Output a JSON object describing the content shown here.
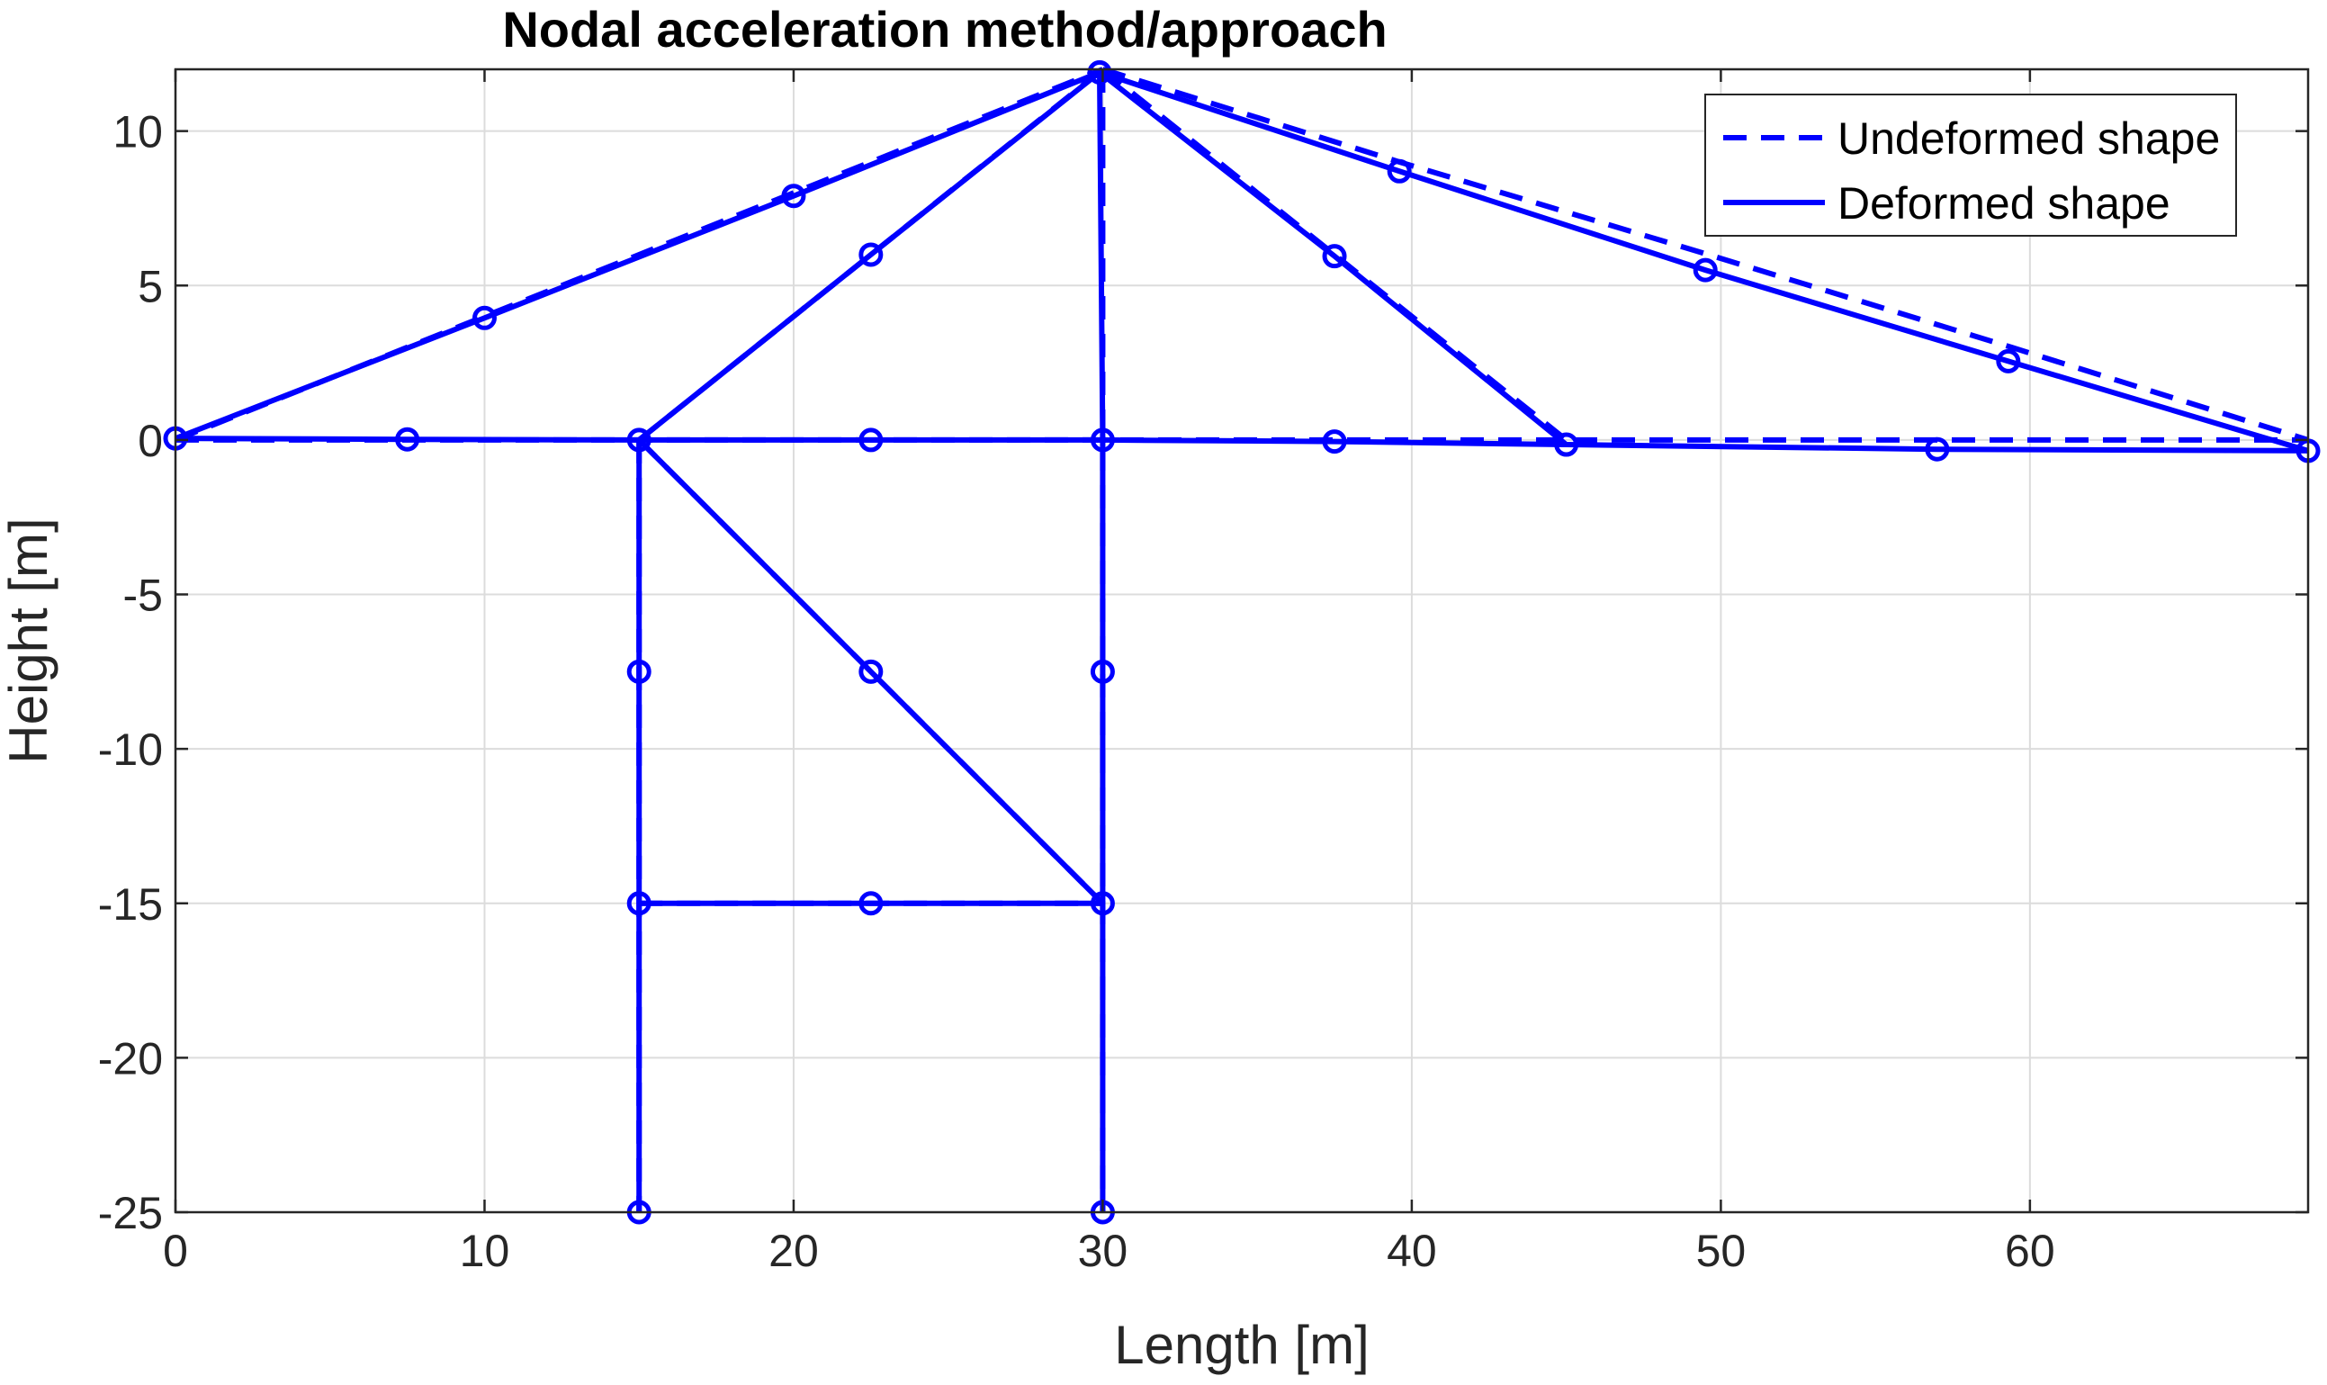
{
  "chart_data": {
    "type": "line",
    "title": "Nodal acceleration method/approach",
    "xlabel": "Length [m]",
    "ylabel": "Height [m]",
    "xlim": [
      0,
      69
    ],
    "ylim": [
      -25,
      12
    ],
    "xticks": [
      0,
      10,
      20,
      30,
      40,
      50,
      60
    ],
    "yticks": [
      -25,
      -20,
      -15,
      -10,
      -5,
      0,
      5,
      10
    ],
    "grid": true,
    "legend_position": "top-right",
    "color": "#0000ff",
    "series": [
      {
        "name": "Undeformed shape",
        "style": "dashed",
        "segments": [
          [
            [
              0,
              0
            ],
            [
              7.5,
              0
            ],
            [
              15,
              0
            ],
            [
              22.5,
              0
            ],
            [
              30,
              0
            ],
            [
              37.5,
              0
            ],
            [
              45,
              0
            ],
            [
              57,
              0
            ],
            [
              69,
              0
            ]
          ],
          [
            [
              0,
              0
            ],
            [
              10,
              4
            ],
            [
              20,
              8
            ],
            [
              30,
              12
            ]
          ],
          [
            [
              15,
              0
            ],
            [
              22.5,
              6
            ],
            [
              30,
              12
            ]
          ],
          [
            [
              30,
              12
            ],
            [
              30,
              0
            ],
            [
              30,
              -7.5
            ],
            [
              30,
              -15
            ],
            [
              30,
              -25
            ]
          ],
          [
            [
              30,
              12
            ],
            [
              37.5,
              6
            ],
            [
              45,
              0
            ]
          ],
          [
            [
              30,
              12
            ],
            [
              39.6,
              9
            ],
            [
              49.6,
              6
            ],
            [
              59.4,
              3
            ],
            [
              69,
              0
            ]
          ],
          [
            [
              15,
              0
            ],
            [
              15,
              -7.5
            ],
            [
              15,
              -15
            ],
            [
              15,
              -25
            ]
          ],
          [
            [
              15,
              0
            ],
            [
              22.5,
              -7.5
            ],
            [
              30,
              -15
            ]
          ],
          [
            [
              15,
              -15
            ],
            [
              22.5,
              -15
            ],
            [
              30,
              -15
            ]
          ]
        ]
      },
      {
        "name": "Deformed shape",
        "style": "solid",
        "marker": "circle",
        "segments": [
          [
            [
              0,
              0.05
            ],
            [
              7.5,
              0.02
            ],
            [
              15,
              0
            ],
            [
              22.5,
              0
            ],
            [
              30,
              0
            ],
            [
              37.5,
              -0.05
            ],
            [
              45,
              -0.15
            ],
            [
              57,
              -0.3
            ],
            [
              69,
              -0.35
            ]
          ],
          [
            [
              0,
              0.05
            ],
            [
              10,
              3.95
            ],
            [
              20,
              7.9
            ],
            [
              29.9,
              11.9
            ]
          ],
          [
            [
              15,
              0
            ],
            [
              22.5,
              6
            ],
            [
              29.9,
              11.9
            ]
          ],
          [
            [
              29.9,
              11.9
            ],
            [
              30,
              0
            ],
            [
              30,
              -7.5
            ],
            [
              30,
              -15
            ],
            [
              30,
              -25
            ]
          ],
          [
            [
              29.9,
              11.9
            ],
            [
              37.5,
              5.95
            ],
            [
              45,
              -0.15
            ]
          ],
          [
            [
              29.9,
              11.9
            ],
            [
              39.6,
              8.7
            ],
            [
              49.5,
              5.5
            ],
            [
              59.3,
              2.55
            ],
            [
              69,
              -0.35
            ]
          ],
          [
            [
              15,
              0
            ],
            [
              15,
              -7.5
            ],
            [
              15,
              -15
            ],
            [
              15,
              -25
            ]
          ],
          [
            [
              15,
              0
            ],
            [
              22.5,
              -7.5
            ],
            [
              30,
              -15
            ]
          ],
          [
            [
              15,
              -15
            ],
            [
              22.5,
              -15
            ],
            [
              30,
              -15
            ]
          ]
        ]
      }
    ]
  }
}
